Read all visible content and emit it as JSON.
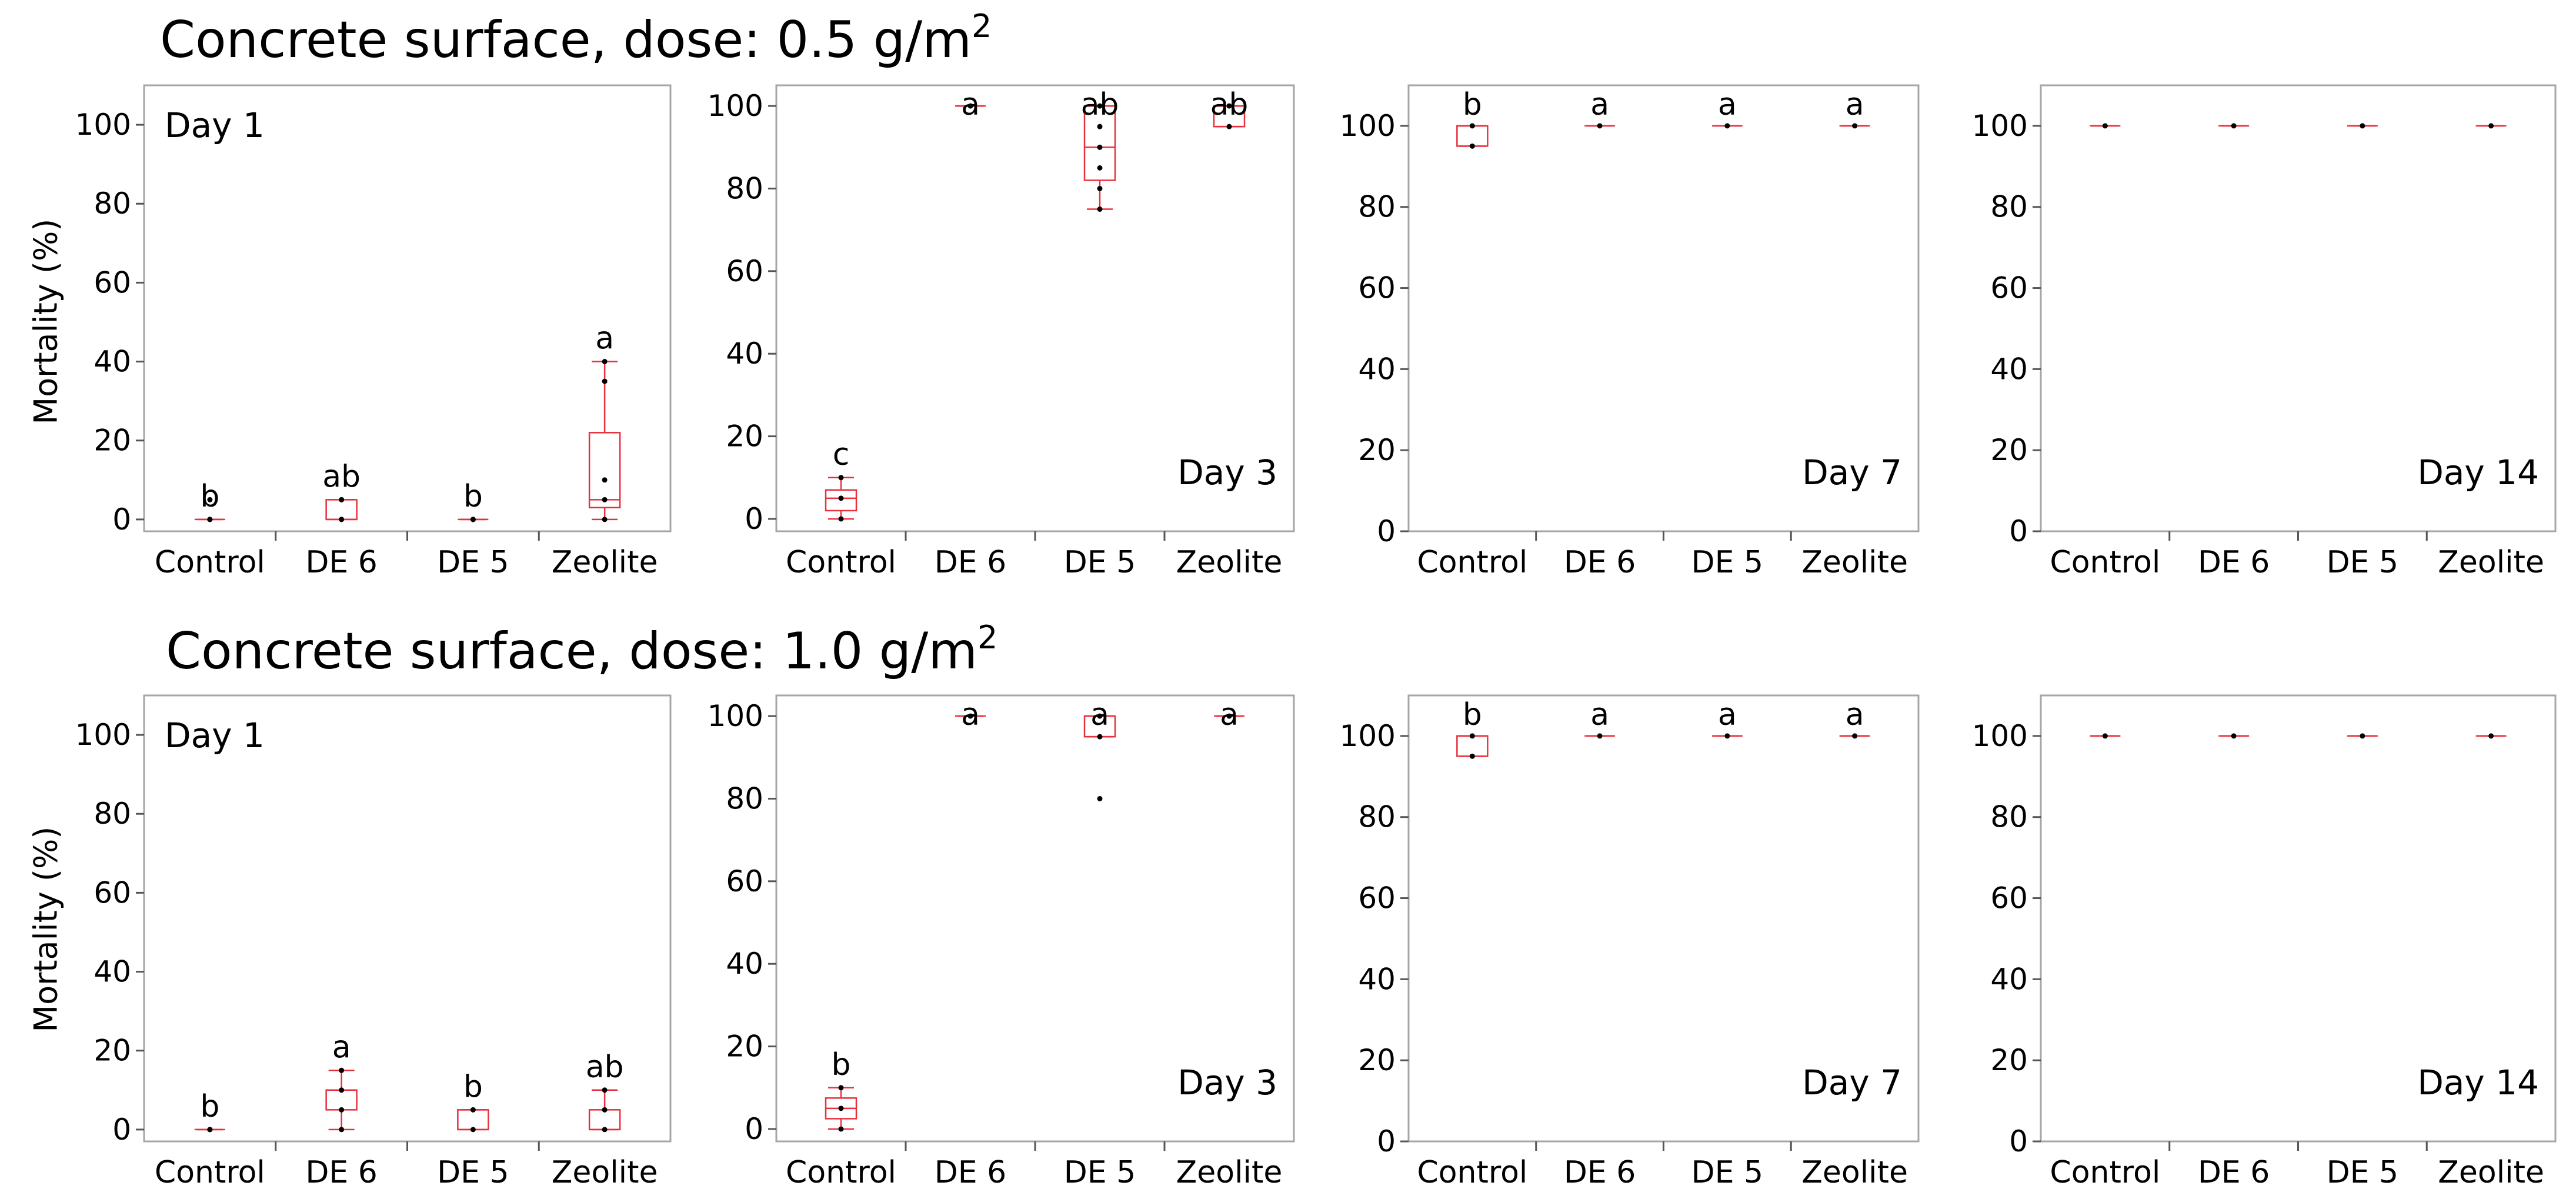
{
  "row_titles": [
    "Concrete surface, dose: 0.5 g/m",
    "Concrete surface, dose: 1.0 g/m"
  ],
  "row_title_superscript": "2",
  "ylabel": "Mortality (%)",
  "colors": {
    "box": "#e8303c",
    "frame": "#a6a6a6",
    "point": "#000000"
  },
  "chart_data": [
    {
      "type": "box",
      "row": 0,
      "day_label": "Day 1",
      "day_label_pos": "top-left",
      "categories": [
        "Control",
        "DE 6",
        "DE 5",
        "Zeolite"
      ],
      "ylim": [
        -3,
        110
      ],
      "yticks": [
        0,
        20,
        40,
        60,
        80,
        100
      ],
      "boxes": [
        {
          "min": 0,
          "q1": 0,
          "median": 0,
          "q3": 0,
          "max": 0,
          "letter": "b",
          "points": [
            0,
            0,
            0,
            5
          ]
        },
        {
          "min": 0,
          "q1": 0,
          "median": 0,
          "q3": 5,
          "max": 5,
          "letter": "ab",
          "points": [
            0,
            0,
            5,
            5
          ]
        },
        {
          "min": 0,
          "q1": 0,
          "median": 0,
          "q3": 0,
          "max": 0,
          "letter": "b",
          "points": [
            0,
            0,
            0,
            0
          ]
        },
        {
          "min": 0,
          "q1": 3,
          "median": 5,
          "q3": 22,
          "max": 40,
          "letter": "a",
          "points": [
            0,
            5,
            10,
            35,
            40
          ]
        }
      ]
    },
    {
      "type": "box",
      "row": 0,
      "day_label": "Day 3",
      "day_label_pos": "bottom-right",
      "categories": [
        "Control",
        "DE 6",
        "DE 5",
        "Zeolite"
      ],
      "ylim": [
        -3,
        105
      ],
      "yticks": [
        0,
        20,
        40,
        60,
        80,
        100
      ],
      "boxes": [
        {
          "min": 0,
          "q1": 2,
          "median": 5,
          "q3": 7,
          "max": 10,
          "letter": "c",
          "points": [
            0,
            5,
            10
          ]
        },
        {
          "min": 100,
          "q1": 100,
          "median": 100,
          "q3": 100,
          "max": 100,
          "letter": "a",
          "points": [
            100
          ]
        },
        {
          "min": 75,
          "q1": 82,
          "median": 90,
          "q3": 100,
          "max": 100,
          "letter": "ab",
          "points": [
            75,
            80,
            85,
            90,
            95,
            100
          ]
        },
        {
          "min": 95,
          "q1": 95,
          "median": 100,
          "q3": 100,
          "max": 100,
          "letter": "ab",
          "points": [
            95,
            100
          ]
        }
      ]
    },
    {
      "type": "box",
      "row": 0,
      "day_label": "Day 7",
      "day_label_pos": "bottom-right",
      "categories": [
        "Control",
        "DE 6",
        "DE 5",
        "Zeolite"
      ],
      "ylim": [
        0,
        110
      ],
      "yticks": [
        0,
        20,
        40,
        60,
        80,
        100
      ],
      "boxes": [
        {
          "min": 95,
          "q1": 95,
          "median": 100,
          "q3": 100,
          "max": 100,
          "letter": "b",
          "points": [
            95,
            100
          ]
        },
        {
          "min": 100,
          "q1": 100,
          "median": 100,
          "q3": 100,
          "max": 100,
          "letter": "a",
          "points": [
            100
          ]
        },
        {
          "min": 100,
          "q1": 100,
          "median": 100,
          "q3": 100,
          "max": 100,
          "letter": "a",
          "points": [
            100
          ]
        },
        {
          "min": 100,
          "q1": 100,
          "median": 100,
          "q3": 100,
          "max": 100,
          "letter": "a",
          "points": [
            100
          ]
        }
      ]
    },
    {
      "type": "box",
      "row": 0,
      "day_label": "Day 14",
      "day_label_pos": "bottom-right",
      "categories": [
        "Control",
        "DE 6",
        "DE 5",
        "Zeolite"
      ],
      "ylim": [
        0,
        110
      ],
      "yticks": [
        0,
        20,
        40,
        60,
        80,
        100
      ],
      "boxes": [
        {
          "min": 100,
          "q1": 100,
          "median": 100,
          "q3": 100,
          "max": 100,
          "letter": "",
          "points": [
            100
          ]
        },
        {
          "min": 100,
          "q1": 100,
          "median": 100,
          "q3": 100,
          "max": 100,
          "letter": "",
          "points": [
            100
          ]
        },
        {
          "min": 100,
          "q1": 100,
          "median": 100,
          "q3": 100,
          "max": 100,
          "letter": "",
          "points": [
            100
          ]
        },
        {
          "min": 100,
          "q1": 100,
          "median": 100,
          "q3": 100,
          "max": 100,
          "letter": "",
          "points": [
            100
          ]
        }
      ]
    },
    {
      "type": "box",
      "row": 1,
      "day_label": "Day 1",
      "day_label_pos": "top-left",
      "categories": [
        "Control",
        "DE 6",
        "DE 5",
        "Zeolite"
      ],
      "ylim": [
        -3,
        110
      ],
      "yticks": [
        0,
        20,
        40,
        60,
        80,
        100
      ],
      "boxes": [
        {
          "min": 0,
          "q1": 0,
          "median": 0,
          "q3": 0,
          "max": 0,
          "letter": "b",
          "points": [
            0,
            0,
            0
          ]
        },
        {
          "min": 0,
          "q1": 5,
          "median": 10,
          "q3": 10,
          "max": 15,
          "letter": "a",
          "points": [
            0,
            5,
            10,
            15
          ]
        },
        {
          "min": 0,
          "q1": 0,
          "median": 0,
          "q3": 5,
          "max": 5,
          "letter": "b",
          "points": [
            0,
            5
          ]
        },
        {
          "min": 0,
          "q1": 0,
          "median": 0,
          "q3": 5,
          "max": 10,
          "letter": "ab",
          "points": [
            0,
            5,
            10
          ]
        }
      ]
    },
    {
      "type": "box",
      "row": 1,
      "day_label": "Day 3",
      "day_label_pos": "bottom-right",
      "categories": [
        "Control",
        "DE 6",
        "DE 5",
        "Zeolite"
      ],
      "ylim": [
        -3,
        105
      ],
      "yticks": [
        0,
        20,
        40,
        60,
        80,
        100
      ],
      "boxes": [
        {
          "min": 0,
          "q1": 2.5,
          "median": 5,
          "q3": 7.5,
          "max": 10,
          "letter": "b",
          "points": [
            0,
            5,
            10
          ]
        },
        {
          "min": 100,
          "q1": 100,
          "median": 100,
          "q3": 100,
          "max": 100,
          "letter": "a",
          "points": [
            100
          ]
        },
        {
          "min": 95,
          "q1": 95,
          "median": 100,
          "q3": 100,
          "max": 100,
          "letter": "a",
          "points": [
            80,
            95,
            100
          ]
        },
        {
          "min": 100,
          "q1": 100,
          "median": 100,
          "q3": 100,
          "max": 100,
          "letter": "a",
          "points": [
            100
          ]
        }
      ]
    },
    {
      "type": "box",
      "row": 1,
      "day_label": "Day 7",
      "day_label_pos": "bottom-right",
      "categories": [
        "Control",
        "DE 6",
        "DE 5",
        "Zeolite"
      ],
      "ylim": [
        0,
        110
      ],
      "yticks": [
        0,
        20,
        40,
        60,
        80,
        100
      ],
      "boxes": [
        {
          "min": 95,
          "q1": 95,
          "median": 100,
          "q3": 100,
          "max": 100,
          "letter": "b",
          "points": [
            95,
            100
          ]
        },
        {
          "min": 100,
          "q1": 100,
          "median": 100,
          "q3": 100,
          "max": 100,
          "letter": "a",
          "points": [
            100
          ]
        },
        {
          "min": 100,
          "q1": 100,
          "median": 100,
          "q3": 100,
          "max": 100,
          "letter": "a",
          "points": [
            100
          ]
        },
        {
          "min": 100,
          "q1": 100,
          "median": 100,
          "q3": 100,
          "max": 100,
          "letter": "a",
          "points": [
            100
          ]
        }
      ]
    },
    {
      "type": "box",
      "row": 1,
      "day_label": "Day 14",
      "day_label_pos": "bottom-right",
      "categories": [
        "Control",
        "DE 6",
        "DE 5",
        "Zeolite"
      ],
      "ylim": [
        0,
        110
      ],
      "yticks": [
        0,
        20,
        40,
        60,
        80,
        100
      ],
      "boxes": [
        {
          "min": 100,
          "q1": 100,
          "median": 100,
          "q3": 100,
          "max": 100,
          "letter": "",
          "points": [
            100
          ]
        },
        {
          "min": 100,
          "q1": 100,
          "median": 100,
          "q3": 100,
          "max": 100,
          "letter": "",
          "points": [
            100
          ]
        },
        {
          "min": 100,
          "q1": 100,
          "median": 100,
          "q3": 100,
          "max": 100,
          "letter": "",
          "points": [
            100
          ]
        },
        {
          "min": 100,
          "q1": 100,
          "median": 100,
          "q3": 100,
          "max": 100,
          "letter": "",
          "points": [
            100
          ]
        }
      ]
    }
  ]
}
